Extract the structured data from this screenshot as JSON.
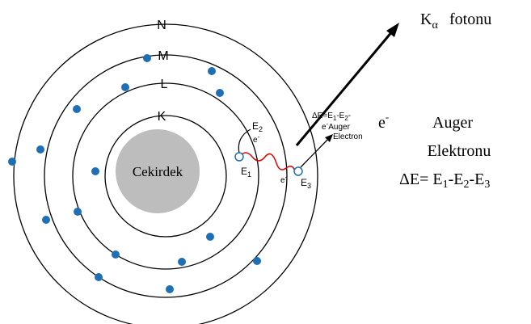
{
  "diagram": {
    "shells": {
      "n": "N",
      "m": "M",
      "l": "L",
      "k": "K"
    },
    "nucleus": "Cekirdek",
    "energy_levels": [
      {
        "letter": "E",
        "index": "2"
      },
      {
        "letter": "E",
        "index": "1"
      },
      {
        "letter": "E",
        "index": "3"
      }
    ],
    "inner_electrons": [
      {
        "symbol": "e",
        "charge": "-"
      },
      {
        "symbol": "e",
        "charge": "-"
      }
    ],
    "inner_equation": {
      "a": "ΔE=E",
      "s1": "1",
      "b": "-E",
      "s2": "2",
      "c": "-"
    },
    "auger_inner": {
      "symbol": "e",
      "charge": "-",
      "line1": "Auger",
      "line2": "Electron"
    },
    "photon": {
      "letter": "K",
      "sub": "α",
      "word": "fotonu"
    },
    "emitted_electron": {
      "symbol": "e",
      "charge": "-"
    },
    "auger_title": [
      "Auger",
      "Elektronu"
    ],
    "equation": {
      "a": "ΔE= E",
      "s1": "1",
      "b": "-E",
      "s2": "2",
      "c": "-E",
      "s3": "3"
    }
  }
}
